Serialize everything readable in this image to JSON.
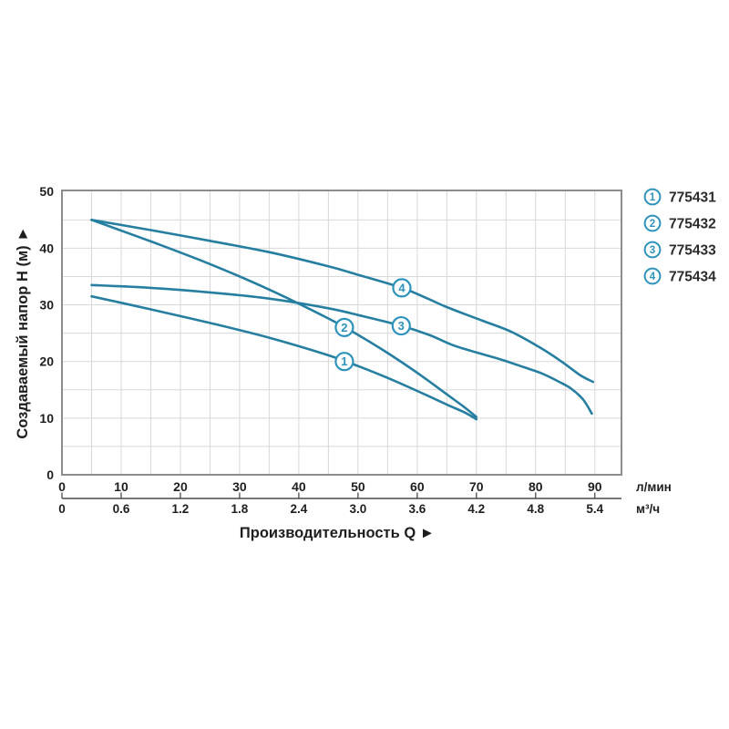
{
  "chart_data": {
    "type": "line",
    "title": "",
    "xlabel": "Производительность Q ►",
    "ylabel": "Создаваемый напор H (м) ▲",
    "x_axis": {
      "xlim": [
        0,
        94.5
      ],
      "grid_step": 5,
      "primary": {
        "unit": "л/мин",
        "ticks": [
          "0",
          "10",
          "20",
          "30",
          "40",
          "50",
          "60",
          "70",
          "80",
          "90"
        ],
        "tick_values": [
          0,
          10,
          20,
          30,
          40,
          50,
          60,
          70,
          80,
          90
        ]
      },
      "secondary": {
        "unit": "м³/ч",
        "ticks": [
          "0",
          "0.6",
          "1.2",
          "1.8",
          "2.4",
          "3.0",
          "3.6",
          "4.2",
          "4.8",
          "5.4"
        ],
        "tick_values": [
          0,
          10,
          20,
          30,
          40,
          50,
          60,
          70,
          80,
          90
        ]
      }
    },
    "y_axis": {
      "ylim": [
        0,
        50.2
      ],
      "grid_step": 5,
      "ticks": [
        "0",
        "10",
        "20",
        "30",
        "40",
        "50"
      ],
      "tick_values": [
        0,
        10,
        20,
        30,
        40,
        50
      ]
    },
    "grid": true,
    "legend_position": "outside-top-right",
    "series": [
      {
        "num": "1",
        "label": "775431",
        "marker": {
          "q": 47.7,
          "h": 20
        },
        "points": [
          [
            5,
            31.5
          ],
          [
            15,
            29.2
          ],
          [
            25,
            26.8
          ],
          [
            35,
            24.2
          ],
          [
            45,
            21.1
          ],
          [
            50,
            19.2
          ],
          [
            55,
            17.1
          ],
          [
            60,
            14.8
          ],
          [
            65,
            12.4
          ],
          [
            68,
            11.0
          ],
          [
            70,
            9.8
          ]
        ]
      },
      {
        "num": "2",
        "label": "775432",
        "marker": {
          "q": 47.7,
          "h": 26
        },
        "points": [
          [
            5,
            45
          ],
          [
            15,
            41.2
          ],
          [
            25,
            37.2
          ],
          [
            35,
            32.7
          ],
          [
            45,
            27.6
          ],
          [
            50,
            24.7
          ],
          [
            55,
            21.5
          ],
          [
            60,
            18.0
          ],
          [
            65,
            14.2
          ],
          [
            68,
            11.9
          ],
          [
            70,
            10.2
          ]
        ]
      },
      {
        "num": "3",
        "label": "775433",
        "marker": {
          "q": 57.3,
          "h": 26.3
        },
        "points": [
          [
            5,
            33.5
          ],
          [
            15,
            33.0
          ],
          [
            25,
            32.2
          ],
          [
            35,
            31.1
          ],
          [
            45,
            29.4
          ],
          [
            50,
            28.2
          ],
          [
            57.3,
            26.3
          ],
          [
            62,
            24.7
          ],
          [
            66,
            22.9
          ],
          [
            70,
            21.6
          ],
          [
            74,
            20.4
          ],
          [
            78,
            19.0
          ],
          [
            81,
            17.9
          ],
          [
            84,
            16.4
          ],
          [
            86,
            15.2
          ],
          [
            88,
            13.3
          ],
          [
            89.5,
            10.8
          ]
        ]
      },
      {
        "num": "4",
        "label": "775434",
        "marker": {
          "q": 57.4,
          "h": 33
        },
        "points": [
          [
            5,
            45
          ],
          [
            15,
            43.2
          ],
          [
            25,
            41.3
          ],
          [
            35,
            39.3
          ],
          [
            45,
            36.8
          ],
          [
            50,
            35.3
          ],
          [
            57.4,
            33
          ],
          [
            62,
            31.0
          ],
          [
            65,
            29.6
          ],
          [
            71,
            27.2
          ],
          [
            76,
            25.2
          ],
          [
            81,
            22.3
          ],
          [
            84.5,
            19.9
          ],
          [
            87.5,
            17.6
          ],
          [
            89.7,
            16.4
          ]
        ]
      }
    ],
    "legend": [
      {
        "num": "1",
        "label": "775431"
      },
      {
        "num": "2",
        "label": "775432"
      },
      {
        "num": "3",
        "label": "775433"
      },
      {
        "num": "4",
        "label": "775434"
      }
    ]
  },
  "colors": {
    "curve": "#267fa0",
    "accent": "#2e93bb",
    "grid": "#d8d8d8",
    "plot_border": "#8c8c8c",
    "ruler": "#4a4a4a",
    "text": "#1e1e1e",
    "legend_text": "#2b2b2b"
  }
}
